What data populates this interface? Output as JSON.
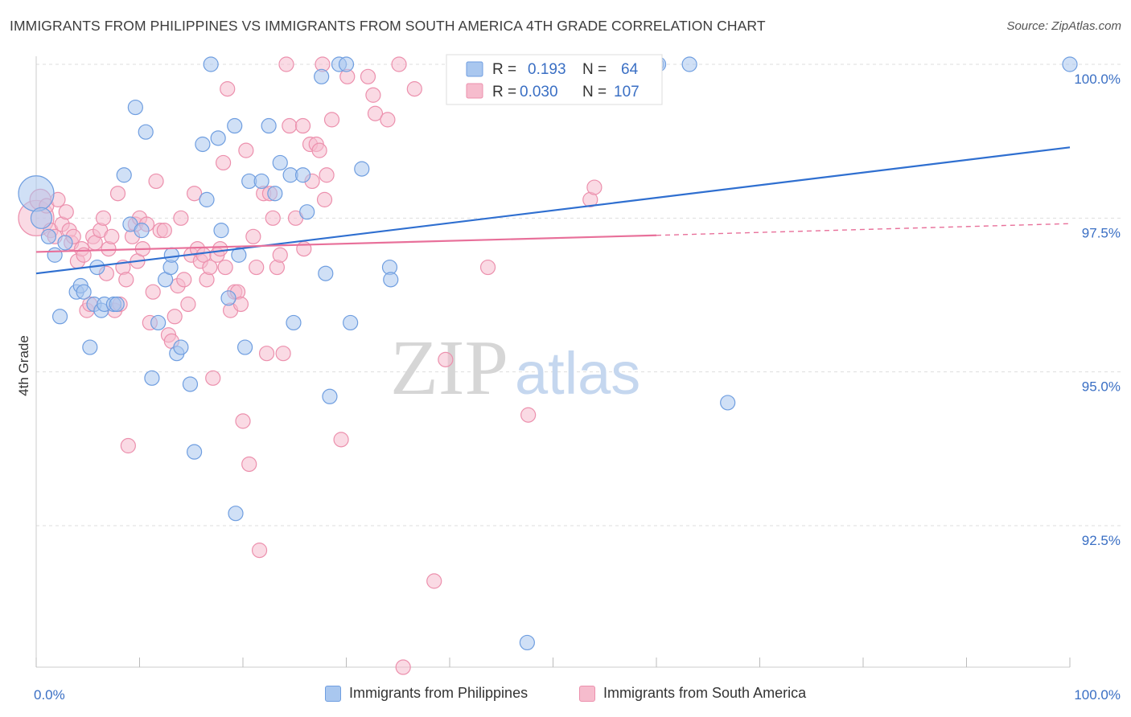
{
  "title": "IMMIGRANTS FROM PHILIPPINES VS IMMIGRANTS FROM SOUTH AMERICA 4TH GRADE CORRELATION CHART",
  "source": "Source: ZipAtlas.com",
  "watermark": {
    "zip": "ZIP",
    "atlas": "atlas"
  },
  "colors": {
    "blue_fill": "#a9c7ef",
    "blue_stroke": "#6f9ee0",
    "blue_line": "#2f6fd0",
    "pink_fill": "#f6bccd",
    "pink_stroke": "#ec90ad",
    "pink_line": "#e8709a",
    "value_text": "#3a6fc4",
    "grid": "#dedede"
  },
  "legend_box": {
    "r_label": "R =",
    "n_label": "N =",
    "rows": [
      {
        "series": "Immigrants from Philippines",
        "r": "0.193",
        "n": "64"
      },
      {
        "series": "Immigrants from South America",
        "r": "0.030",
        "n": "107"
      }
    ]
  },
  "legend_bottom": [
    "Immigrants from Philippines",
    "Immigrants from South America"
  ],
  "chart_data": {
    "type": "scatter",
    "title": "IMMIGRANTS FROM PHILIPPINES VS IMMIGRANTS FROM SOUTH AMERICA 4TH GRADE CORRELATION CHART",
    "xlabel": "",
    "ylabel": "4th Grade",
    "xlim": [
      0,
      100
    ],
    "ylim": [
      90.2,
      100.25
    ],
    "x_tick_labels": [
      "0.0%",
      "100.0%"
    ],
    "y_ticks": [
      92.5,
      95.0,
      97.5,
      100.0
    ],
    "y_tick_labels": [
      "92.5%",
      "95.0%",
      "97.5%",
      "100.0%"
    ],
    "grid": true,
    "legend_placement": "top-center",
    "series": [
      {
        "name": "Immigrants from Philippines",
        "r": 0.193,
        "n": 64,
        "trend": {
          "x0": 0,
          "y0": 96.6,
          "x1": 100,
          "y1": 98.65
        },
        "points": [
          [
            0.0,
            97.9,
            22
          ],
          [
            0.5,
            97.5,
            13
          ],
          [
            1.2,
            97.2,
            9
          ],
          [
            1.8,
            96.9,
            9
          ],
          [
            2.3,
            95.9,
            9
          ],
          [
            2.8,
            97.1,
            9
          ],
          [
            3.9,
            96.3,
            9
          ],
          [
            4.3,
            96.4,
            9
          ],
          [
            4.6,
            96.3,
            9
          ],
          [
            5.2,
            95.4,
            9
          ],
          [
            5.6,
            96.1,
            9
          ],
          [
            5.9,
            96.7,
            9
          ],
          [
            6.3,
            96.0,
            9
          ],
          [
            6.6,
            96.1,
            9
          ],
          [
            7.5,
            96.1,
            9
          ],
          [
            7.8,
            96.1,
            9
          ],
          [
            8.5,
            98.2,
            9
          ],
          [
            9.1,
            97.4,
            9
          ],
          [
            9.6,
            99.3,
            9
          ],
          [
            10.2,
            97.3,
            9
          ],
          [
            10.6,
            98.9,
            9
          ],
          [
            11.2,
            94.9,
            9
          ],
          [
            11.8,
            95.8,
            9
          ],
          [
            12.5,
            96.5,
            9
          ],
          [
            13.0,
            96.7,
            9
          ],
          [
            13.1,
            96.9,
            9
          ],
          [
            13.6,
            95.3,
            9
          ],
          [
            14.0,
            95.4,
            9
          ],
          [
            14.9,
            94.8,
            9
          ],
          [
            15.3,
            93.7,
            9
          ],
          [
            16.1,
            98.7,
            9
          ],
          [
            16.5,
            97.8,
            9
          ],
          [
            16.9,
            100.0,
            9
          ],
          [
            17.6,
            98.8,
            9
          ],
          [
            17.9,
            97.3,
            9
          ],
          [
            18.6,
            96.2,
            9
          ],
          [
            19.2,
            99.0,
            9
          ],
          [
            19.3,
            92.7,
            9
          ],
          [
            19.6,
            96.9,
            9
          ],
          [
            20.2,
            95.4,
            9
          ],
          [
            20.6,
            98.1,
            9
          ],
          [
            21.8,
            98.1,
            9
          ],
          [
            22.5,
            99.0,
            9
          ],
          [
            23.1,
            97.9,
            9
          ],
          [
            23.6,
            98.4,
            9
          ],
          [
            24.6,
            98.2,
            9
          ],
          [
            24.9,
            95.8,
            9
          ],
          [
            25.8,
            98.2,
            9
          ],
          [
            26.2,
            97.6,
            9
          ],
          [
            27.6,
            99.8,
            9
          ],
          [
            28.0,
            96.6,
            9
          ],
          [
            28.4,
            94.6,
            9
          ],
          [
            29.3,
            100.0,
            9
          ],
          [
            30.0,
            100.0,
            9
          ],
          [
            30.4,
            95.8,
            9
          ],
          [
            31.5,
            98.3,
            9
          ],
          [
            34.2,
            96.7,
            9
          ],
          [
            34.3,
            96.5,
            9
          ],
          [
            47.5,
            90.6,
            9
          ],
          [
            60.0,
            100.0,
            9
          ],
          [
            60.2,
            100.0,
            9
          ],
          [
            63.2,
            100.0,
            9
          ],
          [
            66.9,
            94.5,
            9
          ],
          [
            100.0,
            100.0,
            9
          ]
        ]
      },
      {
        "name": "Immigrants from South America",
        "r": 0.03,
        "n": 107,
        "trend": {
          "x0": 0,
          "y0": 96.95,
          "x1": 60,
          "y1": 97.22
        },
        "trend_dashed": {
          "x0": 60,
          "y0": 97.22,
          "x1": 100,
          "y1": 97.41
        },
        "points": [
          [
            0.0,
            97.5,
            22
          ],
          [
            0.4,
            97.8,
            13
          ],
          [
            1.0,
            97.7,
            9
          ],
          [
            1.4,
            97.3,
            9
          ],
          [
            1.8,
            97.2,
            9
          ],
          [
            2.1,
            97.8,
            9
          ],
          [
            2.5,
            97.4,
            9
          ],
          [
            2.9,
            97.6,
            9
          ],
          [
            3.2,
            97.3,
            9
          ],
          [
            3.4,
            97.1,
            9
          ],
          [
            3.6,
            97.2,
            9
          ],
          [
            4.0,
            96.8,
            9
          ],
          [
            4.4,
            97.0,
            9
          ],
          [
            4.6,
            96.9,
            9
          ],
          [
            4.9,
            96.0,
            9
          ],
          [
            5.2,
            96.1,
            9
          ],
          [
            5.5,
            97.2,
            9
          ],
          [
            5.7,
            97.1,
            9
          ],
          [
            6.2,
            97.3,
            9
          ],
          [
            6.5,
            97.5,
            9
          ],
          [
            6.8,
            96.6,
            9
          ],
          [
            7.0,
            97.0,
            9
          ],
          [
            7.3,
            97.2,
            9
          ],
          [
            7.6,
            96.0,
            9
          ],
          [
            7.9,
            97.9,
            9
          ],
          [
            8.1,
            96.1,
            9
          ],
          [
            8.4,
            96.7,
            9
          ],
          [
            8.7,
            96.5,
            9
          ],
          [
            8.9,
            93.8,
            9
          ],
          [
            9.3,
            97.2,
            9
          ],
          [
            9.6,
            97.4,
            9
          ],
          [
            9.8,
            96.8,
            9
          ],
          [
            10.0,
            97.5,
            9
          ],
          [
            10.3,
            97.0,
            9
          ],
          [
            10.7,
            97.4,
            9
          ],
          [
            11.0,
            95.8,
            9
          ],
          [
            11.3,
            96.3,
            9
          ],
          [
            11.6,
            98.1,
            9
          ],
          [
            12.0,
            97.3,
            9
          ],
          [
            12.4,
            97.3,
            9
          ],
          [
            12.8,
            95.6,
            9
          ],
          [
            13.1,
            95.5,
            9
          ],
          [
            13.4,
            95.9,
            9
          ],
          [
            13.7,
            96.4,
            9
          ],
          [
            14.0,
            97.5,
            9
          ],
          [
            14.3,
            96.5,
            9
          ],
          [
            14.7,
            96.1,
            9
          ],
          [
            15.0,
            96.9,
            9
          ],
          [
            15.3,
            97.9,
            9
          ],
          [
            15.6,
            97.0,
            9
          ],
          [
            15.9,
            96.8,
            9
          ],
          [
            16.2,
            96.9,
            9
          ],
          [
            16.5,
            96.5,
            9
          ],
          [
            16.8,
            96.7,
            9
          ],
          [
            17.1,
            94.9,
            9
          ],
          [
            17.5,
            96.9,
            9
          ],
          [
            17.8,
            97.0,
            9
          ],
          [
            18.1,
            98.4,
            9
          ],
          [
            18.3,
            96.7,
            9
          ],
          [
            18.5,
            99.6,
            9
          ],
          [
            18.8,
            96.0,
            9
          ],
          [
            19.2,
            96.3,
            9
          ],
          [
            19.5,
            96.3,
            9
          ],
          [
            19.8,
            96.1,
            9
          ],
          [
            20.0,
            94.2,
            9
          ],
          [
            20.3,
            98.6,
            9
          ],
          [
            20.6,
            93.5,
            9
          ],
          [
            21.0,
            97.2,
            9
          ],
          [
            21.3,
            96.7,
            9
          ],
          [
            21.6,
            92.1,
            9
          ],
          [
            22.0,
            97.9,
            9
          ],
          [
            22.3,
            95.3,
            9
          ],
          [
            22.6,
            97.9,
            9
          ],
          [
            22.9,
            97.5,
            9
          ],
          [
            23.3,
            96.7,
            9
          ],
          [
            23.6,
            96.9,
            9
          ],
          [
            23.9,
            95.3,
            9
          ],
          [
            24.2,
            100.0,
            9
          ],
          [
            24.5,
            99.0,
            9
          ],
          [
            25.1,
            97.5,
            9
          ],
          [
            25.8,
            99.0,
            9
          ],
          [
            25.9,
            97.0,
            9
          ],
          [
            26.5,
            98.7,
            9
          ],
          [
            26.7,
            98.1,
            9
          ],
          [
            27.1,
            98.7,
            9
          ],
          [
            27.4,
            98.6,
            9
          ],
          [
            27.7,
            100.0,
            9
          ],
          [
            27.9,
            97.8,
            9
          ],
          [
            28.1,
            98.2,
            9
          ],
          [
            28.6,
            99.1,
            9
          ],
          [
            29.5,
            93.9,
            9
          ],
          [
            30.1,
            99.8,
            9
          ],
          [
            32.1,
            99.8,
            9
          ],
          [
            32.6,
            99.5,
            9
          ],
          [
            32.8,
            99.2,
            9
          ],
          [
            34.0,
            99.1,
            9
          ],
          [
            35.1,
            100.0,
            9
          ],
          [
            35.5,
            90.2,
            9
          ],
          [
            36.6,
            99.6,
            9
          ],
          [
            38.5,
            91.6,
            9
          ],
          [
            39.6,
            95.2,
            9
          ],
          [
            43.7,
            96.7,
            9
          ],
          [
            47.6,
            94.3,
            9
          ],
          [
            53.6,
            97.8,
            9
          ],
          [
            54.0,
            98.0,
            9
          ]
        ]
      }
    ]
  }
}
